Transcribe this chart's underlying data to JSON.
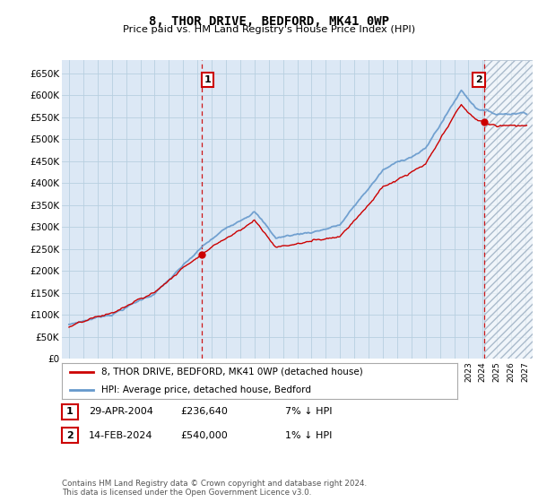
{
  "title": "8, THOR DRIVE, BEDFORD, MK41 0WP",
  "subtitle": "Price paid vs. HM Land Registry's House Price Index (HPI)",
  "ylabel_ticks": [
    "£0",
    "£50K",
    "£100K",
    "£150K",
    "£200K",
    "£250K",
    "£300K",
    "£350K",
    "£400K",
    "£450K",
    "£500K",
    "£550K",
    "£600K",
    "£650K"
  ],
  "ytick_values": [
    0,
    50000,
    100000,
    150000,
    200000,
    250000,
    300000,
    350000,
    400000,
    450000,
    500000,
    550000,
    600000,
    650000
  ],
  "ylim": [
    0,
    680000
  ],
  "xlim_start": 1994.5,
  "xlim_end": 2027.5,
  "background_color": "#dce8f5",
  "grid_color": "#b8cfe0",
  "hpi_color": "#6699cc",
  "price_color": "#cc0000",
  "sale1_x": 2004.33,
  "sale1_y": 236640,
  "sale2_x": 2024.12,
  "sale2_y": 540000,
  "vline_color": "#cc0000",
  "legend_label1": "8, THOR DRIVE, BEDFORD, MK41 0WP (detached house)",
  "legend_label2": "HPI: Average price, detached house, Bedford",
  "annotation1_label": "1",
  "annotation2_label": "2",
  "table_row1": [
    "1",
    "29-APR-2004",
    "£236,640",
    "7% ↓ HPI"
  ],
  "table_row2": [
    "2",
    "14-FEB-2024",
    "£540,000",
    "1% ↓ HPI"
  ],
  "footer": "Contains HM Land Registry data © Crown copyright and database right 2024.\nThis data is licensed under the Open Government Licence v3.0.",
  "hpi_hatched_x_start": 2024.12,
  "hatched_color": "#e8eef5"
}
